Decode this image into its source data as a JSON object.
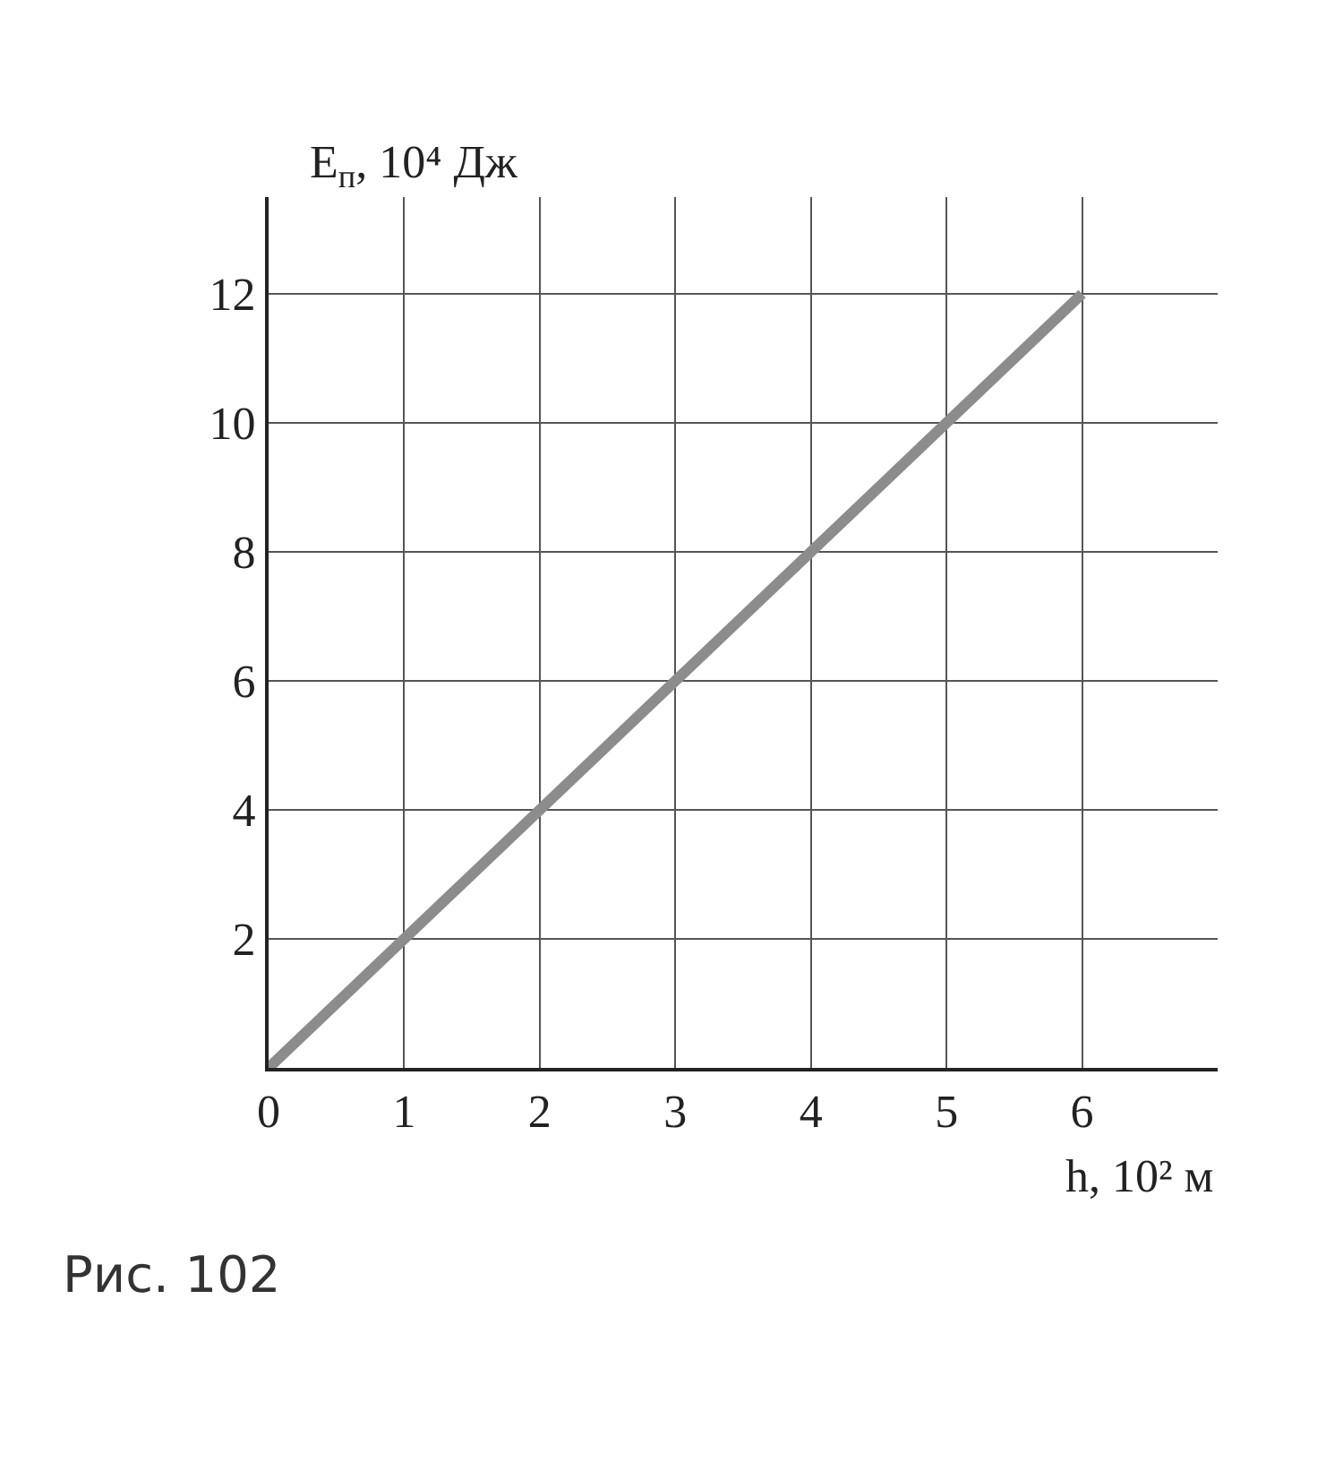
{
  "chart_data": {
    "type": "line",
    "xlabel": "h, 10² м",
    "ylabel": "E$_{п}$, 10⁴ Дж",
    "x": [
      0,
      6
    ],
    "series": [
      {
        "color": "#8c8c8c",
        "values": [
          0,
          12
        ]
      }
    ],
    "xlim": [
      0,
      7
    ],
    "ylim": [
      0,
      13.5
    ],
    "xticks": [
      {
        "value": 0,
        "label": "0"
      },
      1,
      2,
      3,
      4,
      5,
      6
    ],
    "yticks": [
      {
        "value": 0,
        "label": null
      },
      2,
      4,
      6,
      8,
      10,
      12
    ],
    "grid": true,
    "marker": "none",
    "line_style": "solid",
    "annotations": [
      "Рис. 102"
    ]
  }
}
